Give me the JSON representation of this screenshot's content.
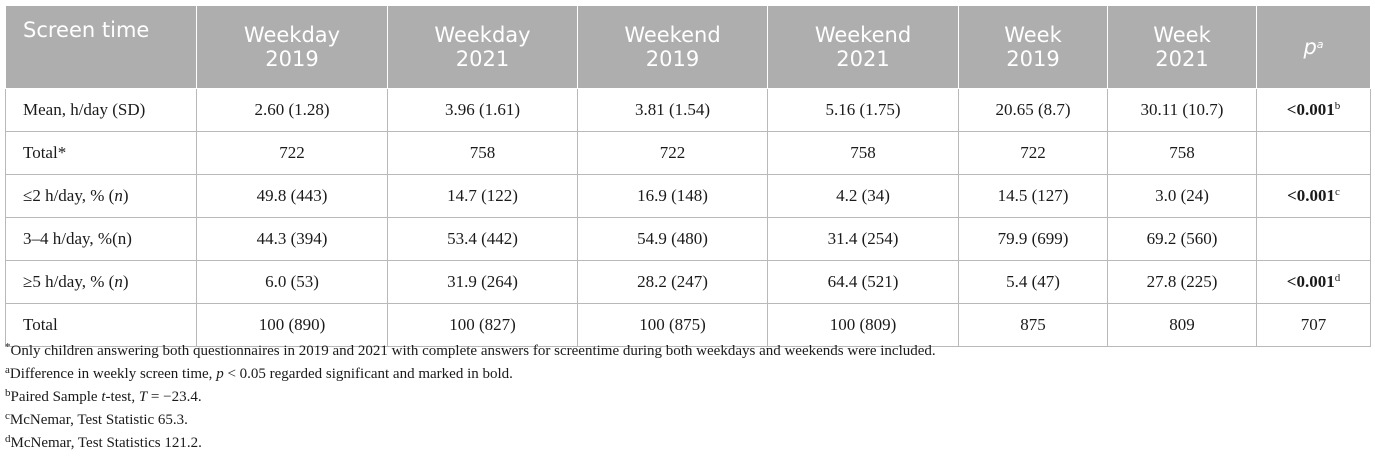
{
  "table": {
    "columns": [
      {
        "line1": "Screen time",
        "line2": ""
      },
      {
        "line1": "Weekday",
        "line2": "2019"
      },
      {
        "line1": "Weekday",
        "line2": "2021"
      },
      {
        "line1": "Weekend",
        "line2": "2019"
      },
      {
        "line1": "Weekend",
        "line2": "2021"
      },
      {
        "line1": "Week",
        "line2": "2019"
      },
      {
        "line1": "Week",
        "line2": "2021"
      }
    ],
    "p_header": {
      "base": "p",
      "sup": "a"
    },
    "rows": [
      {
        "label": "Mean, h/day (SD)",
        "values": [
          "2.60 (1.28)",
          "3.96 (1.61)",
          "3.81 (1.54)",
          "5.16 (1.75)",
          "20.65 (8.7)",
          "30.11 (10.7)"
        ],
        "p": "<0.001",
        "p_sup": "b"
      },
      {
        "label": "Total*",
        "values": [
          "722",
          "758",
          "722",
          "758",
          "722",
          "758"
        ],
        "p": "",
        "p_sup": ""
      },
      {
        "label_prefix": "≤2 h/day, % (",
        "label_italic": "n",
        "label_suffix": ")",
        "values": [
          "49.8 (443)",
          "14.7 (122)",
          "16.9 (148)",
          "4.2 (34)",
          "14.5 (127)",
          "3.0 (24)"
        ],
        "p": "<0.001",
        "p_sup": "c"
      },
      {
        "label": "3–4 h/day, %(n)",
        "values": [
          "44.3 (394)",
          "53.4 (442)",
          "54.9 (480)",
          "31.4 (254)",
          "79.9 (699)",
          "69.2 (560)"
        ],
        "p": "",
        "p_sup": ""
      },
      {
        "label_prefix": "≥5 h/day, % (",
        "label_italic": "n",
        "label_suffix": ")",
        "values": [
          "6.0 (53)",
          "31.9 (264)",
          "28.2 (247)",
          "64.4 (521)",
          "5.4 (47)",
          "27.8 (225)"
        ],
        "p": "<0.001",
        "p_sup": "d"
      },
      {
        "label": "Total",
        "values": [
          "100 (890)",
          "100 (827)",
          "100 (875)",
          "100 (809)",
          "875",
          "809"
        ],
        "p": "707",
        "p_sup": "",
        "p_plain": true
      }
    ]
  },
  "notes": [
    {
      "mark": "*",
      "text": "Only children answering both questionnaires in 2019 and 2021 with complete answers for screentime during both weekdays and weekends were included."
    },
    {
      "mark": "a",
      "pre": "Difference in weekly screen time, ",
      "italic": "p",
      "post": " < 0.05 regarded significant and marked in bold."
    },
    {
      "mark": "b",
      "pre": "Paired Sample ",
      "italic": "t",
      "post": "-test, ",
      "italic2": "T",
      "post2": " = −23.4."
    },
    {
      "mark": "c",
      "pre": "McNemar, Test Statistic 65.3."
    },
    {
      "mark": "d",
      "pre": "McNemar, Test Statistics 121.2."
    }
  ]
}
